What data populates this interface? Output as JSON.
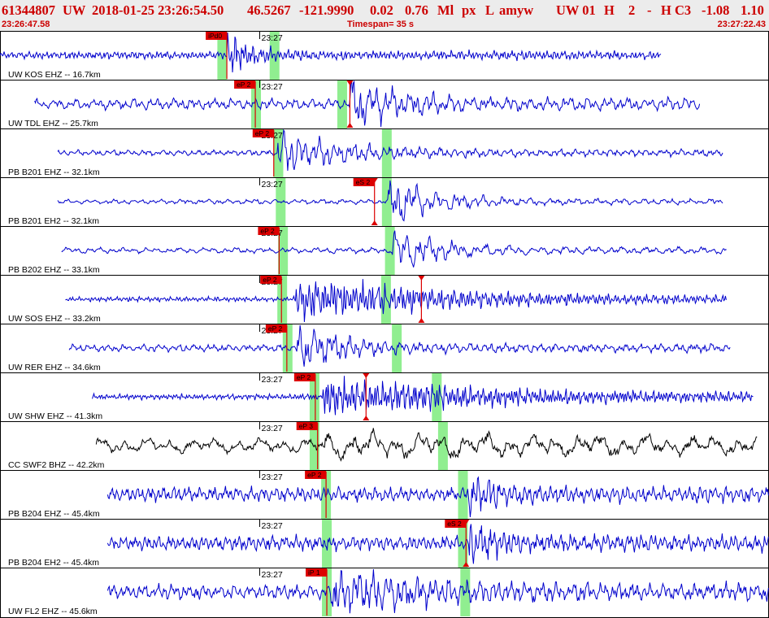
{
  "header": {
    "event_id": "61344807",
    "network": "UW",
    "datetime": "2018-01-25 23:26:54.50",
    "lat": "46.5267",
    "lon": "-121.9990",
    "depth": "0.02",
    "magnitude": "0.76",
    "mag_type": "Ml",
    "flags": "px",
    "etype": "L",
    "author": "amyw",
    "region": "UW 01",
    "h": "H",
    "num": "2",
    "dash": "-",
    "class": "H C3",
    "v1": "-1.08",
    "v2": "1.10",
    "start_time": "23:26:47.58",
    "timespan": "Timespan=  35 s",
    "end_time": "23:27:22.43"
  },
  "time_marker_label": "23:27",
  "colors": {
    "trace": "#0000cc",
    "trace_alt": "#000000",
    "pick": "#dd0000",
    "window": "#90ee90",
    "header_text": "#cc0000"
  },
  "traces": [
    {
      "label": "UW KOS EHZ -- 16.7km",
      "color": "blue",
      "start": 0.0,
      "end": 0.86,
      "p_pick": {
        "label": "iPd0",
        "t": 0.295
      },
      "s_pick": null,
      "p_window": 0.289,
      "s_window": 0.357,
      "tick_label_t": 0.361,
      "amp": 0.16,
      "freq": 1.6,
      "burst": 0.295,
      "burst_amp": 0.95,
      "decay": 0.03
    },
    {
      "label": "UW TDL EHZ -- 25.7km",
      "color": "blue",
      "start": 0.045,
      "end": 0.91,
      "p_pick": {
        "label": "eP 2",
        "t": 0.332
      },
      "s_pick": {
        "label": "",
        "t": 0.455
      },
      "p_window": 0.333,
      "s_window": 0.445,
      "tick_label_t": 0.361,
      "amp": 0.22,
      "freq": 0.7,
      "burst": 0.455,
      "burst_amp": 0.9,
      "decay": 0.07
    },
    {
      "label": "PB B201 EHZ -- 32.1km",
      "color": "blue",
      "start": 0.075,
      "end": 0.94,
      "p_pick": {
        "label": "eP 2",
        "t": 0.356
      },
      "s_pick": null,
      "p_window": 0.362,
      "s_window": 0.503,
      "tick_label_t": 0.361,
      "amp": 0.12,
      "freq": 0.8,
      "burst": 0.36,
      "burst_amp": 0.9,
      "decay": 0.08
    },
    {
      "label": "PB B201 EH2 -- 32.1km",
      "color": "blue",
      "start": 0.075,
      "end": 0.94,
      "p_pick": null,
      "s_pick": {
        "label": "eS 2",
        "t": 0.487
      },
      "p_window": 0.365,
      "s_window": 0.503,
      "tick_label_t": 0.361,
      "amp": 0.1,
      "freq": 0.6,
      "burst": 0.505,
      "burst_amp": 0.95,
      "decay": 0.06
    },
    {
      "label": "PB B202 EHZ -- 33.1km",
      "color": "blue",
      "start": 0.08,
      "end": 0.945,
      "p_pick": {
        "label": "eP 2",
        "t": 0.363
      },
      "s_pick": null,
      "p_window": 0.368,
      "s_window": 0.507,
      "tick_label_t": 0.361,
      "amp": 0.12,
      "freq": 0.5,
      "burst": 0.51,
      "burst_amp": 0.9,
      "decay": 0.06
    },
    {
      "label": "UW SOS EHZ -- 33.2km",
      "color": "blue",
      "start": 0.085,
      "end": 0.945,
      "p_pick": {
        "label": "eP 2",
        "t": 0.366
      },
      "s_pick": {
        "label": "",
        "t": 0.548
      },
      "p_window": 0.367,
      "s_window": 0.502,
      "tick_label_t": 0.361,
      "amp": 0.1,
      "freq": 1.8,
      "burst": 0.385,
      "burst_amp": 0.9,
      "decay": 0.2
    },
    {
      "label": "UW RER EHZ -- 34.6km",
      "color": "blue",
      "start": 0.09,
      "end": 0.95,
      "p_pick": {
        "label": "eP 2",
        "t": 0.373
      },
      "s_pick": null,
      "p_window": 0.374,
      "s_window": 0.516,
      "tick_label_t": 0.361,
      "amp": 0.15,
      "freq": 0.8,
      "burst": 0.385,
      "burst_amp": 0.95,
      "decay": 0.06
    },
    {
      "label": "UW SHW EHZ -- 41.3km",
      "color": "blue",
      "start": 0.12,
      "end": 0.98,
      "p_pick": {
        "label": "eP 2",
        "t": 0.41
      },
      "s_pick": {
        "label": "",
        "t": 0.476
      },
      "p_window": 0.409,
      "s_window": 0.568,
      "tick_label_t": 0.361,
      "amp": 0.12,
      "freq": 2.2,
      "burst": 0.42,
      "burst_amp": 0.75,
      "decay": 0.25
    },
    {
      "label": "CC SWF2 BHZ -- 42.2km",
      "color": "black",
      "start": 0.125,
      "end": 0.985,
      "p_pick": {
        "label": "eP 3",
        "t": 0.413
      },
      "s_pick": null,
      "p_window": 0.409,
      "s_window": 0.576,
      "tick_label_t": 0.361,
      "amp": 0.3,
      "freq": 0.25,
      "burst": 0.42,
      "burst_amp": 0.25,
      "decay": 0.4
    },
    {
      "label": "PB B204 EHZ -- 45.4km",
      "color": "blue",
      "start": 0.14,
      "end": 1.0,
      "p_pick": {
        "label": "eP 2",
        "t": 0.424
      },
      "s_pick": null,
      "p_window": 0.424,
      "s_window": 0.602,
      "tick_label_t": 0.361,
      "amp": 0.3,
      "freq": 1.1,
      "burst": 0.61,
      "burst_amp": 0.95,
      "decay": 0.03
    },
    {
      "label": "PB B204 EH2 -- 45.4km",
      "color": "blue",
      "start": 0.14,
      "end": 1.0,
      "p_pick": null,
      "s_pick": {
        "label": "eS 2",
        "t": 0.606
      },
      "p_window": 0.425,
      "s_window": 0.602,
      "tick_label_t": 0.361,
      "amp": 0.3,
      "freq": 1.2,
      "burst": 0.61,
      "burst_amp": 0.95,
      "decay": 0.03
    },
    {
      "label": "UW FL2 EHZ -- 45.6km",
      "color": "blue",
      "start": 0.14,
      "end": 1.0,
      "p_pick": {
        "label": "iP 1",
        "t": 0.425
      },
      "s_pick": null,
      "p_window": 0.425,
      "s_window": 0.605,
      "tick_label_t": 0.361,
      "amp": 0.3,
      "freq": 0.9,
      "burst": 0.43,
      "burst_amp": 0.9,
      "decay": 0.1
    }
  ]
}
